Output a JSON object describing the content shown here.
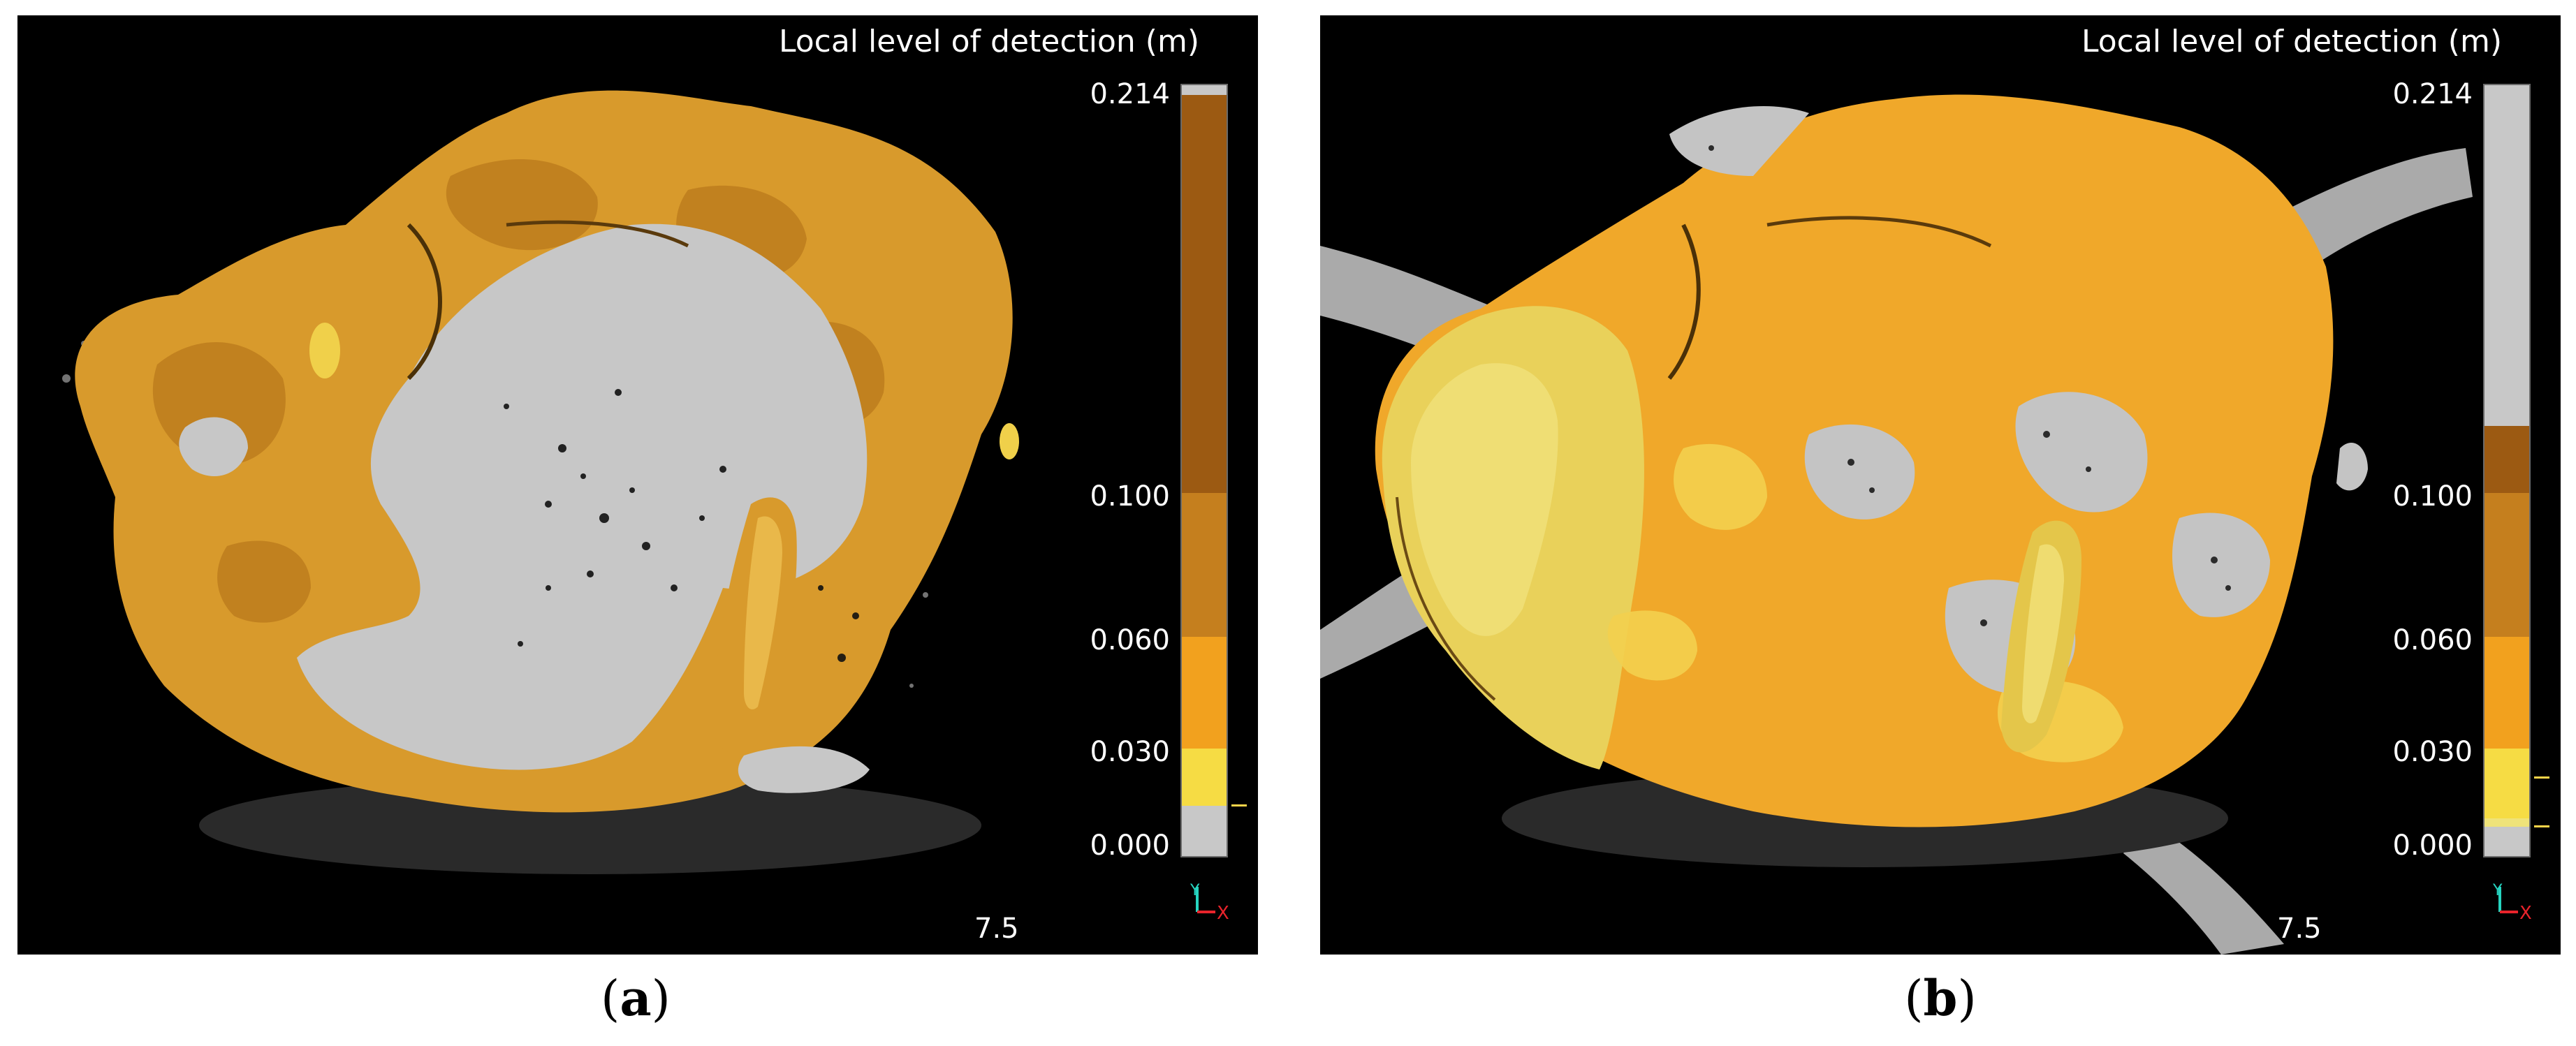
{
  "panels": [
    {
      "id": "a",
      "caption_letter": "a",
      "colorbar_title": "Local level of detection (m)",
      "ticks": [
        "0.214",
        "0.100",
        "0.060",
        "0.030",
        "0.000"
      ],
      "scale_label": "7.5",
      "axis_labels": {
        "y": "Y",
        "x": "X"
      }
    },
    {
      "id": "b",
      "caption_letter": "b",
      "colorbar_title": "Local level of detection (m)",
      "ticks": [
        "0.214",
        "0.100",
        "0.060",
        "0.030",
        "0.000"
      ],
      "scale_label": "7.5",
      "axis_labels": {
        "y": "Y",
        "x": "X"
      }
    }
  ],
  "colors": {
    "background": "#000000",
    "grey_out": "#c8c8c8",
    "band_brown": "#9c5a12",
    "band_dark_orange": "#c57f1e",
    "band_orange": "#f2a11e",
    "band_yellow": "#f6dc44",
    "axis_y": "#26d4c0",
    "axis_x": "#e8232b"
  }
}
